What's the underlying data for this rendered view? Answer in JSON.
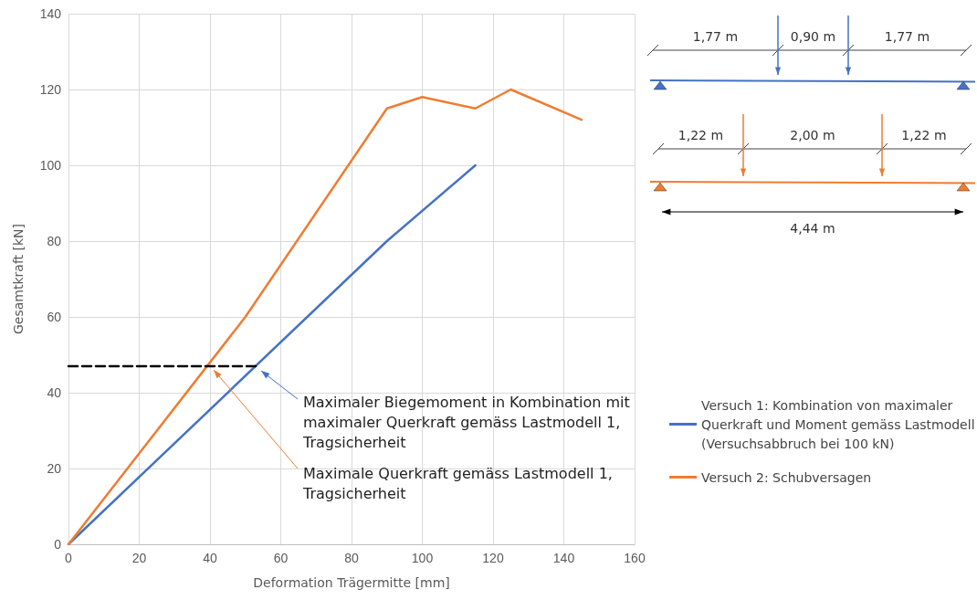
{
  "chart_data": {
    "type": "line",
    "xlabel": "Deformation Trägermitte [mm]",
    "ylabel": "Gesamtkraft [kN]",
    "series": [
      {
        "name": "Versuch 1: Kombination von maximaler Querkraft und Moment gemäss Lastmodell (Versuchsabbruch bei 100 kN)",
        "color": "#4472c4",
        "x": [
          0,
          90,
          115
        ],
        "values": [
          0,
          80,
          100
        ]
      },
      {
        "name": "Versuch 2: Schubversagen",
        "color": "#ed7d31",
        "x": [
          0,
          50,
          90,
          100,
          115,
          125,
          145
        ],
        "values": [
          0,
          60,
          115,
          118,
          115,
          120,
          112
        ]
      },
      {
        "color": "#000000",
        "line_style": "dashed",
        "x": [
          0,
          53
        ],
        "values": [
          47,
          47
        ]
      }
    ],
    "xlim": [
      0,
      160
    ],
    "xticks": [
      0,
      20,
      40,
      60,
      80,
      100,
      120,
      140,
      160
    ],
    "ylim": [
      0,
      140
    ],
    "yticks": [
      0,
      20,
      40,
      60,
      80,
      100,
      120,
      140
    ],
    "grid": true,
    "legend": "right",
    "marker": "none",
    "line_style": "solid",
    "annotations": [
      "Maximaler Biegemoment in Kombination mit maximaler Querkraft gemäss Lastmodell 1, Tragsicherheit",
      "Maximale Querkraft gemäss Lastmodell 1, Tragsicherheit",
      "1,77 m",
      "0,90 m",
      "1,77 m",
      "1,22 m",
      "2,00 m",
      "1,22 m",
      "4,44 m"
    ]
  }
}
